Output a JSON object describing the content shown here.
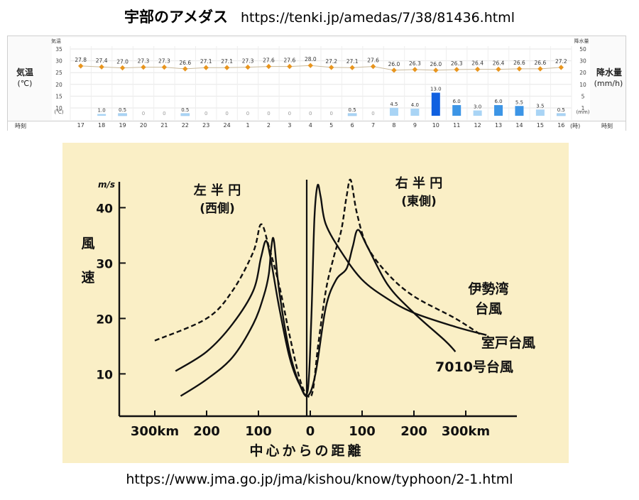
{
  "captions": {
    "top_title": "宇部のアメダス",
    "top_url": "https://tenki.jp/amedas/7/38/81436.html",
    "bottom_url": "https://www.jma.go.jp/jma/kishou/know/typhoon/2-1.html"
  },
  "amedas": {
    "temp_label": "気温",
    "temp_unit": "(℃)",
    "temp_axis_head": "気温",
    "temp_axis_unit": "(℃)",
    "precip_label": "降水量",
    "precip_unit": "(mm/h)",
    "precip_axis_head": "降水量",
    "precip_axis_unit": "(mm)",
    "time_label_left": "時刻",
    "time_label_right": "時刻",
    "time_unit": "(時)",
    "temp_ticks": [
      "35",
      "30",
      "25",
      "20",
      "15",
      "10"
    ],
    "precip_ticks": [
      "50",
      "30",
      "20",
      "10",
      "5",
      "1"
    ],
    "colors": {
      "temp_marker": "#e8951e",
      "bar_light": "#a9d4f5",
      "bar_mid": "#3c95e6",
      "bar_dark": "#1060e0",
      "bar_empty": "#ffffff"
    }
  },
  "chart_data": [
    {
      "type": "bar",
      "title": "",
      "categories": [
        "17",
        "18",
        "19",
        "20",
        "21",
        "22",
        "23",
        "24",
        "1",
        "2",
        "3",
        "4",
        "5",
        "6",
        "7",
        "8",
        "9",
        "10",
        "11",
        "12",
        "13",
        "14",
        "15",
        "16"
      ],
      "series": [
        {
          "name": "気温",
          "values": [
            27.8,
            27.4,
            27.0,
            27.3,
            27.3,
            26.6,
            27.1,
            27.1,
            27.3,
            27.6,
            27.6,
            28.0,
            27.2,
            27.1,
            27.6,
            26.0,
            26.3,
            26.0,
            26.3,
            26.4,
            26.4,
            26.6,
            26.6,
            27.2
          ],
          "labels": [
            "27.8",
            "27.4",
            "27.0",
            "27.3",
            "27.3",
            "26.6",
            "27.1",
            "27.1",
            "27.3",
            "27.6",
            "27.6",
            "28.0",
            "27.2",
            "27.1",
            "27.6",
            "26.0",
            "26.3",
            "26.0",
            "26.3",
            "26.4",
            "26.4",
            "26.6",
            "26.6",
            "27.2"
          ]
        },
        {
          "name": "降水量",
          "values": [
            0,
            1.0,
            0.5,
            0,
            0,
            0.5,
            0,
            0,
            0,
            0,
            0,
            0,
            0,
            0.5,
            0,
            4.5,
            4.0,
            13.0,
            6.0,
            3.0,
            6.0,
            5.5,
            3.5,
            0.5
          ],
          "labels": [
            "",
            "1.0",
            "0.5",
            "0",
            "0",
            "0.5",
            "0",
            "0",
            "0",
            "0",
            "0",
            "0",
            "0",
            "0.5",
            "0",
            "4.5",
            "4.0",
            "13.0",
            "6.0",
            "3.0",
            "6.0",
            "5.5",
            "3.5",
            "0.5"
          ]
        }
      ],
      "ylim_temp": [
        10,
        35
      ],
      "ylim_precip": [
        0,
        50
      ]
    },
    {
      "type": "line",
      "title": "",
      "xlabel": "中心からの距離",
      "ylabel": "風速",
      "yunit": "m/s",
      "xlim": [
        -330,
        380
      ],
      "ylim": [
        3,
        45
      ],
      "x_ticks": [
        -300,
        -200,
        -100,
        0,
        100,
        200,
        300
      ],
      "x_tick_labels": [
        "300km",
        "200",
        "100",
        "0",
        "100",
        "200",
        "300km"
      ],
      "y_ticks": [
        10,
        20,
        30,
        40
      ],
      "y_tick_labels": [
        "10",
        "20",
        "30",
        "40"
      ],
      "region_labels": {
        "left_title": "左 半 円",
        "left_sub": "(西側)",
        "right_title": "右 半 円",
        "right_sub": "(東側)"
      },
      "series": [
        {
          "name": "伊勢湾台風",
          "name_lines": [
            "伊勢湾",
            "台風"
          ],
          "style": "dashed",
          "x": [
            -300,
            -200,
            -150,
            -110,
            -95,
            -80,
            -60,
            -40,
            -20,
            -5,
            5,
            15,
            30,
            45,
            60,
            70,
            78,
            90,
            110,
            150,
            200,
            280,
            330
          ],
          "y": [
            16,
            20,
            25,
            32,
            37,
            33,
            26,
            17,
            9,
            6,
            7,
            15,
            25,
            31,
            36,
            42,
            45,
            39,
            33,
            28,
            24,
            20,
            17
          ]
        },
        {
          "name": "室戸台風",
          "style": "solid",
          "x": [
            -260,
            -200,
            -150,
            -110,
            -95,
            -85,
            -75,
            -60,
            -40,
            -20,
            -5,
            2,
            8,
            14,
            20,
            30,
            60,
            100,
            150,
            200,
            280,
            340
          ],
          "y": [
            10.5,
            14,
            19,
            25,
            31,
            34,
            30,
            22,
            13,
            8,
            7,
            20,
            38,
            44,
            42,
            37,
            32,
            27,
            23.5,
            21,
            18.5,
            17
          ]
        },
        {
          "name": "7010号台風",
          "style": "solid",
          "x": [
            -250,
            -200,
            -150,
            -110,
            -90,
            -80,
            -75,
            -70,
            -60,
            -40,
            -20,
            -5,
            10,
            30,
            50,
            70,
            82,
            92,
            110,
            150,
            200,
            260,
            280
          ],
          "y": [
            6,
            9,
            13,
            19,
            24,
            28,
            33,
            34,
            25,
            14,
            8,
            6,
            10,
            22,
            27,
            29,
            33,
            36,
            33,
            26,
            21,
            16,
            14
          ]
        }
      ]
    }
  ]
}
